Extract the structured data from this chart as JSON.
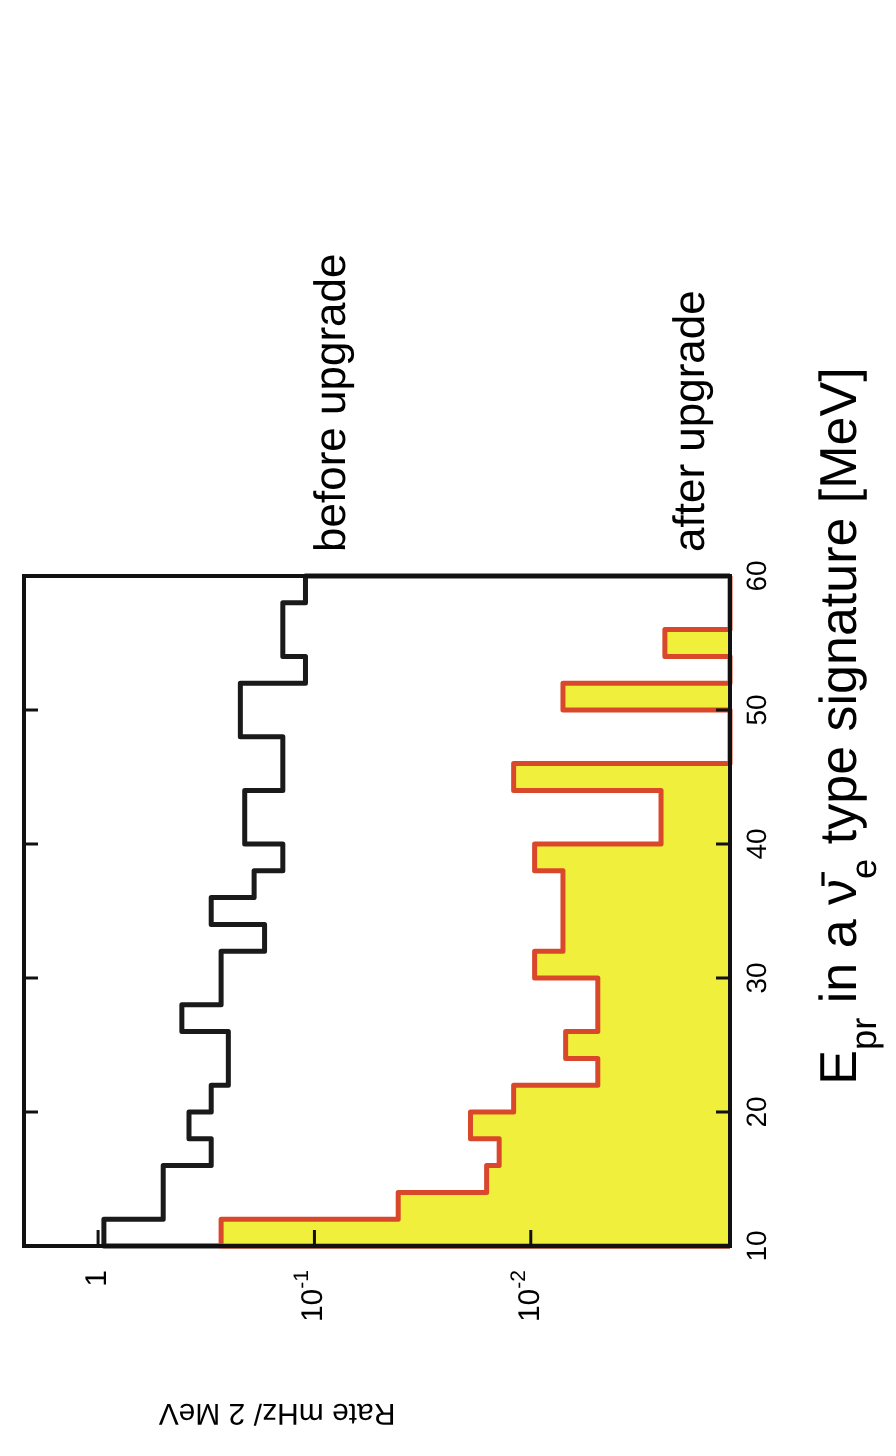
{
  "chart_data": {
    "type": "histogram",
    "orientation": "horizontal",
    "xlabel": "Rate   mHz/ 2 MeV",
    "ylabel": "E$_{pr}$ in a ν̄$_{e}$ type signature  [MeV]",
    "bins": [
      10,
      12,
      14,
      16,
      18,
      20,
      22,
      24,
      26,
      28,
      30,
      32,
      34,
      36,
      38,
      40,
      42,
      44,
      46,
      48,
      50,
      52,
      54,
      56,
      58,
      60
    ],
    "series": [
      {
        "name": "before upgrade",
        "color": "#1a1a1a",
        "values": [
          0.94,
          0.5,
          0.5,
          0.3,
          0.38,
          0.3,
          0.25,
          0.25,
          0.41,
          0.27,
          0.27,
          0.17,
          0.3,
          0.19,
          0.14,
          0.21,
          0.21,
          0.14,
          0.14,
          0.22,
          0.22,
          0.11,
          0.14,
          0.14,
          0.11
        ]
      },
      {
        "name": "after upgrade",
        "color": "#f0f03c",
        "values": [
          0.27,
          0.041,
          0.016,
          0.014,
          0.019,
          0.012,
          0.0049,
          0.0069,
          0.0049,
          0.0049,
          0.0096,
          0.0071,
          0.0071,
          0.0071,
          0.0096,
          0.0025,
          0.0025,
          0.012,
          null,
          null,
          0.0071,
          null,
          0.0024,
          null,
          null
        ]
      }
    ],
    "ylim": [
      10,
      60
    ],
    "yticks": [
      10,
      20,
      30,
      40,
      50,
      60
    ],
    "xlim": [
      2.2,
      0.0012
    ],
    "xticks": [
      {
        "value": 1,
        "label": "1"
      },
      {
        "value": 0.1,
        "label": "10$^{-1}$"
      },
      {
        "value": 0.01,
        "label": "10$^{-2}$"
      }
    ],
    "log": "x",
    "legend": false,
    "grid": false
  }
}
